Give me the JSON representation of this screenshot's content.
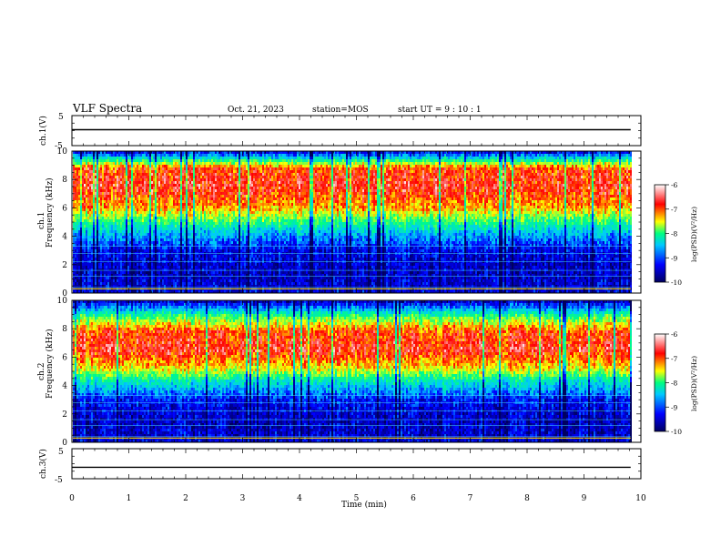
{
  "header": {
    "title": "VLF Spectra",
    "date": "Oct. 21, 2023",
    "station": "station=MOS",
    "start": "start  UT =  9 : 10 : 1"
  },
  "chart_data": [
    {
      "type": "line",
      "title": "",
      "ylabel": "ch.1(V)",
      "ylim": [
        -5,
        5
      ],
      "yticks": [
        "5",
        "-5"
      ],
      "series": [
        {
          "values_hint": "flat trace near 0 V",
          "level": 0.3
        }
      ]
    },
    {
      "type": "heatmap",
      "ylabel": "ch.1 Frequency (kHz)",
      "ylabel_channel": "ch.1",
      "ylabel_quantity": "Frequency (kHz)",
      "ylim": [
        0,
        10
      ],
      "yticks": [
        "0",
        "2",
        "4",
        "6",
        "8",
        "10"
      ],
      "colorbar": {
        "label": "log(PSD)(V²/Hz)",
        "range": [
          -10,
          -6
        ],
        "ticks": [
          "-6",
          "-7",
          "-8",
          "-9",
          "-10"
        ]
      },
      "intensity_profile": [
        {
          "f": 0.3,
          "level": -9.5
        },
        {
          "f": 1.5,
          "level": -9.6
        },
        {
          "f": 3.0,
          "level": -9.4
        },
        {
          "f": 4.3,
          "level": -8.6
        },
        {
          "f": 5.2,
          "level": -7.8
        },
        {
          "f": 6.0,
          "level": -7.1
        },
        {
          "f": 7.5,
          "level": -6.6
        },
        {
          "f": 8.8,
          "level": -6.8
        },
        {
          "f": 9.4,
          "level": -8.2
        },
        {
          "f": 9.9,
          "level": -9.3
        }
      ]
    },
    {
      "type": "heatmap",
      "ylabel": "ch.2 Frequency (kHz)",
      "ylabel_channel": "ch.2",
      "ylabel_quantity": "Frequency (kHz)",
      "ylim": [
        0,
        10
      ],
      "yticks": [
        "0",
        "2",
        "4",
        "6",
        "8",
        "10"
      ],
      "colorbar": {
        "label": "log(PSD)(V²/Hz)",
        "range": [
          -10,
          -6
        ],
        "ticks": [
          "-6",
          "-7",
          "-8",
          "-9",
          "-10"
        ]
      },
      "intensity_profile": [
        {
          "f": 0.3,
          "level": -9.5
        },
        {
          "f": 1.5,
          "level": -9.6
        },
        {
          "f": 3.0,
          "level": -9.3
        },
        {
          "f": 4.3,
          "level": -8.3
        },
        {
          "f": 5.2,
          "level": -7.3
        },
        {
          "f": 6.5,
          "level": -6.6
        },
        {
          "f": 7.8,
          "level": -6.8
        },
        {
          "f": 8.8,
          "level": -7.8
        },
        {
          "f": 9.5,
          "level": -8.9
        },
        {
          "f": 9.9,
          "level": -9.5
        }
      ]
    },
    {
      "type": "line",
      "title": "",
      "ylabel": "ch.3(V)",
      "ylim": [
        -5,
        5
      ],
      "yticks": [
        "5",
        "-5"
      ],
      "series": [
        {
          "values_hint": "flat trace",
          "level": -1.2
        }
      ]
    }
  ],
  "xaxis": {
    "label": "Time  (min)",
    "range": [
      0,
      10
    ],
    "ticks": [
      "0",
      "1",
      "2",
      "3",
      "4",
      "5",
      "6",
      "7",
      "8",
      "9",
      "10"
    ],
    "data_end": 9.82
  },
  "colors": {
    "colormap": [
      "#000080",
      "#0000ff",
      "#00c8ff",
      "#00ff80",
      "#ffff00",
      "#ff0000",
      "#ffffff"
    ]
  }
}
